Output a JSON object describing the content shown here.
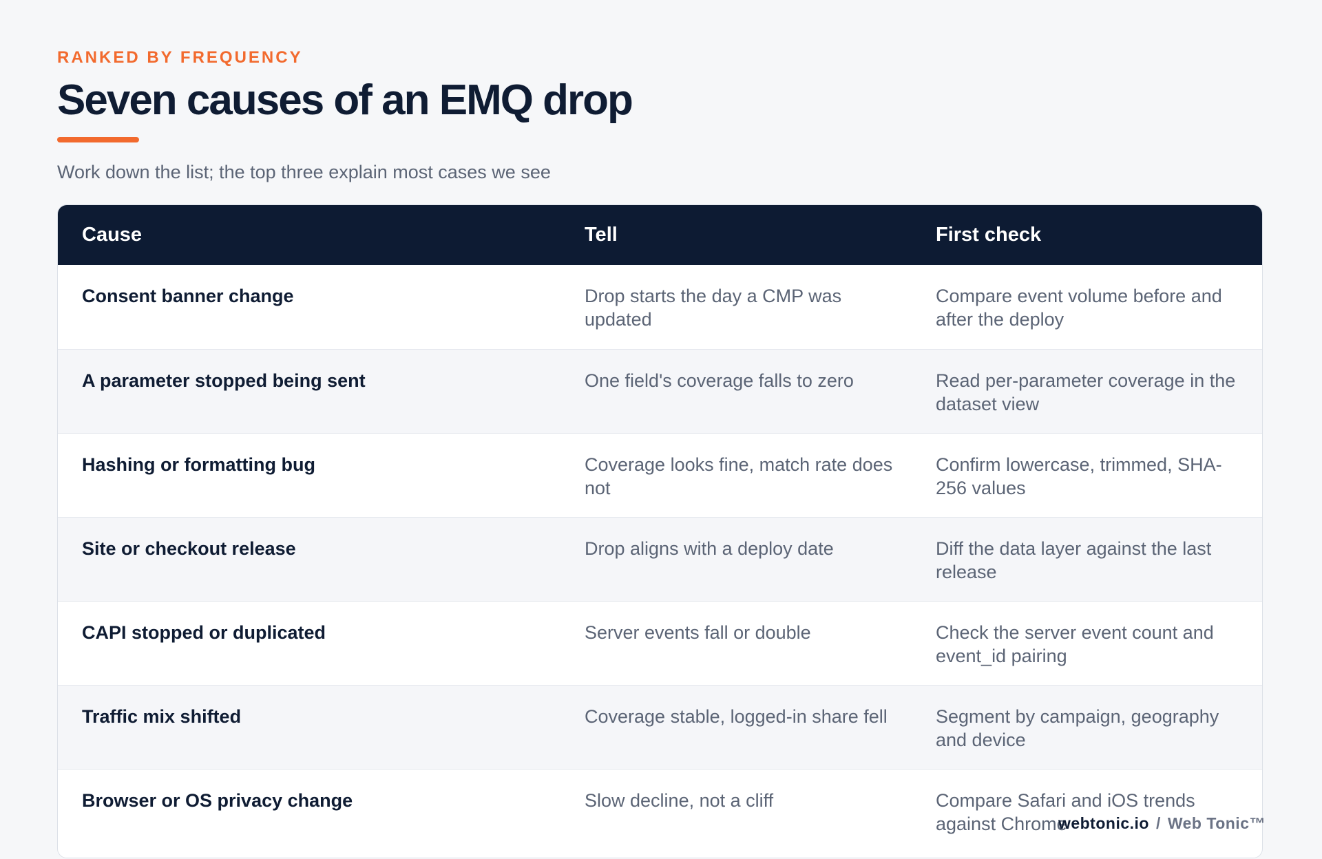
{
  "header": {
    "eyebrow": "RANKED BY FREQUENCY",
    "title": "Seven causes of an EMQ drop",
    "subtitle": "Work down the list; the top three explain most cases we see"
  },
  "table": {
    "columns": [
      "Cause",
      "Tell",
      "First check"
    ],
    "rows": [
      {
        "cause": "Consent banner change",
        "tell": "Drop starts the day a CMP was updated",
        "check": "Compare event volume before and after the deploy"
      },
      {
        "cause": "A parameter stopped being sent",
        "tell": "One field's coverage falls to zero",
        "check": "Read per-parameter coverage in the dataset view"
      },
      {
        "cause": "Hashing or formatting bug",
        "tell": "Coverage looks fine, match rate does not",
        "check": "Confirm lowercase, trimmed, SHA-256 values"
      },
      {
        "cause": "Site or checkout release",
        "tell": "Drop aligns with a deploy date",
        "check": "Diff the data layer against the last release"
      },
      {
        "cause": "CAPI stopped or duplicated",
        "tell": "Server events fall or double",
        "check": "Check the server event count and event_id pairing"
      },
      {
        "cause": "Traffic mix shifted",
        "tell": "Coverage stable, logged-in share fell",
        "check": "Segment by campaign, geography and device"
      },
      {
        "cause": "Browser or OS privacy change",
        "tell": "Slow decline, not a cliff",
        "check": "Compare Safari and iOS trends against Chrome"
      }
    ]
  },
  "footer": {
    "domain": "webtonic.io",
    "separator": "/",
    "brand": "Web Tonic™"
  },
  "colors": {
    "accent": "#f26a2e",
    "navy": "#0d1b33",
    "muted_text": "#5b6475"
  }
}
